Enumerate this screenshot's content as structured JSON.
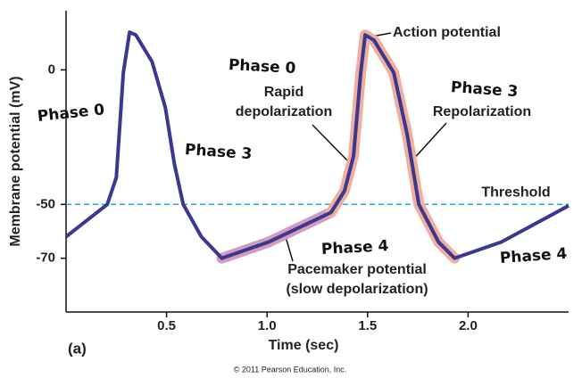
{
  "chart_data": {
    "type": "line",
    "x_label": "Time (sec)",
    "y_label": "Membrane potential (mV)",
    "panel_label": "(a)",
    "footer": "© 2011 Pearson Education, Inc.",
    "xlim": [
      0,
      2.5
    ],
    "ylim": [
      -90,
      22
    ],
    "xticks": [
      0.5,
      {
        "value": 1.0,
        "label": "1.0"
      },
      1.5,
      {
        "value": 2.0,
        "label": "2.0"
      }
    ],
    "yticks": [
      0,
      -50,
      -70
    ],
    "series": [
      {
        "color": "#3b3890",
        "x": [
          0,
          0.205,
          0.25,
          0.285,
          0.316,
          0.347,
          0.428,
          0.494,
          0.539,
          0.583,
          0.673,
          0.775,
          1.007,
          1.318,
          1.385,
          1.43,
          1.466,
          1.488,
          1.532,
          1.63,
          1.697,
          1.755,
          1.853,
          1.933,
          2.165,
          2.5
        ],
        "values": [
          -62,
          -50,
          -40,
          -1,
          14,
          13,
          3,
          -14,
          -35,
          -50,
          -62,
          -70,
          -64,
          -53,
          -45,
          -32,
          -1,
          13,
          11,
          -1,
          -24,
          -50,
          -64,
          -70,
          -64,
          -50.5
        ]
      }
    ],
    "highlights": [
      {
        "color": "#d59bbd",
        "from": 0.775,
        "to": 1.318
      },
      {
        "color": "#f2ae9c",
        "from": 1.318,
        "to": 1.933
      }
    ],
    "reference_lines": [
      {
        "value": -50,
        "label": "Threshold",
        "color": "#2aa8df"
      }
    ],
    "annotations": [
      {
        "lines": [
          "Action potential"
        ]
      },
      {
        "lines": [
          "Rapid",
          "depolarization"
        ]
      },
      {
        "lines": [
          "Repolarization"
        ]
      },
      {
        "lines": [
          "Pacemaker potential",
          "(slow depolarization)"
        ]
      }
    ],
    "handwritten_notes": [
      "Phase 0",
      "Phase 3",
      "Phase 0",
      "Phase 3",
      "Phase 4",
      "Phase 4"
    ]
  }
}
